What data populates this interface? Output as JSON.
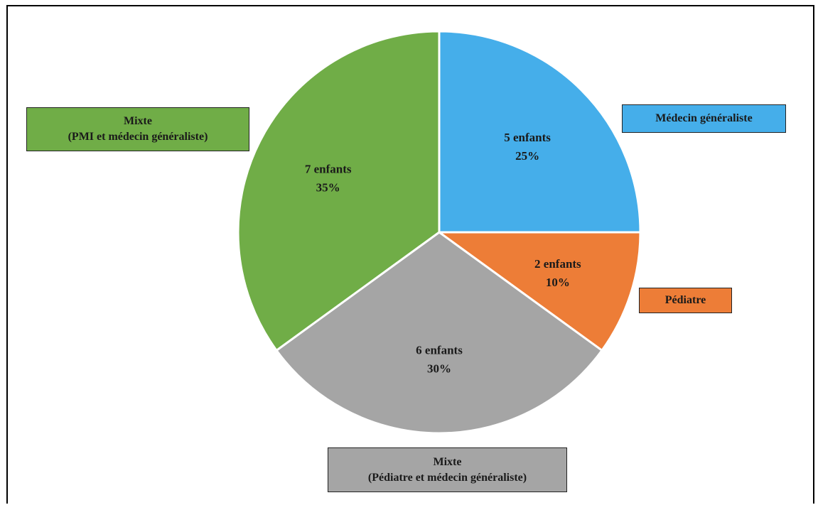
{
  "chart_data": {
    "type": "pie",
    "slices": [
      {
        "name": "Médecin généraliste",
        "count_label": "5 enfants",
        "percent_label": "25%",
        "value": 25,
        "color": "#45aeea"
      },
      {
        "name": "Pédiatre",
        "count_label": "2 enfants",
        "percent_label": "10%",
        "value": 10,
        "color": "#ed7d37"
      },
      {
        "name": "Mixte (Pédiatre et médecin généraliste)",
        "count_label": "6 enfants",
        "percent_label": "30%",
        "value": 30,
        "color": "#a5a5a5"
      },
      {
        "name": "Mixte (PMI et médecin généraliste)",
        "count_label": "7 enfants",
        "percent_label": "35%",
        "value": 35,
        "color": "#70ad47"
      }
    ]
  },
  "legend": {
    "medecin": {
      "line1": "Médecin généraliste"
    },
    "pediatre": {
      "line1": "Pédiatre"
    },
    "mixte_pediatre": {
      "line1": "Mixte",
      "line2": "(Pédiatre et médecin généraliste)"
    },
    "mixte_pmi": {
      "line1": "Mixte",
      "line2": "(PMI et médecin généraliste)"
    }
  }
}
